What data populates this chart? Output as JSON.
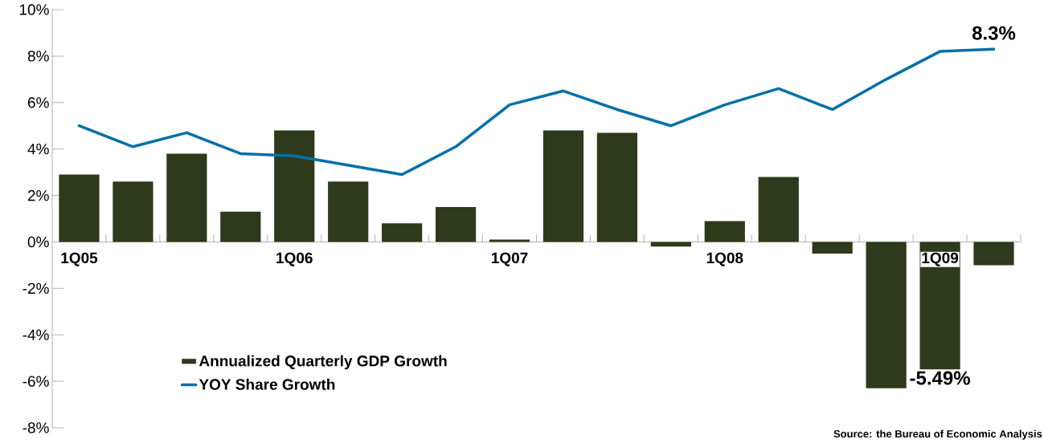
{
  "chart_data": {
    "type": "bar",
    "categories": [
      "1Q05",
      null,
      null,
      null,
      "1Q06",
      null,
      null,
      null,
      "1Q07",
      null,
      null,
      null,
      "1Q08",
      null,
      null,
      null,
      "1Q09",
      null
    ],
    "series": [
      {
        "name": "Annualized Quarterly GDP Growth",
        "type": "bar",
        "color": "#2d3a1b",
        "values": [
          2.9,
          2.6,
          3.8,
          1.3,
          4.8,
          2.6,
          0.8,
          1.5,
          0.1,
          4.8,
          4.7,
          -0.2,
          0.9,
          2.8,
          -0.5,
          -6.3,
          -5.49,
          -1.0
        ],
        "value_labels": [
          null,
          null,
          null,
          null,
          null,
          null,
          null,
          null,
          null,
          null,
          null,
          null,
          null,
          null,
          null,
          null,
          "-5.49%",
          null
        ]
      },
      {
        "name": "YOY Share Growth",
        "type": "line",
        "color": "#0070a8",
        "values": [
          5.0,
          4.1,
          4.7,
          3.8,
          3.7,
          3.3,
          2.9,
          4.1,
          5.9,
          6.5,
          5.7,
          5.0,
          5.9,
          6.6,
          5.7,
          7.0,
          8.2,
          8.3
        ],
        "value_labels": [
          null,
          null,
          null,
          null,
          null,
          null,
          null,
          null,
          null,
          null,
          null,
          null,
          null,
          null,
          null,
          null,
          null,
          "8.3%"
        ]
      }
    ],
    "ylim": [
      -8,
      10
    ],
    "yticks": [
      {
        "value": -8,
        "label": "-8%"
      },
      {
        "value": -6,
        "label": "-6%"
      },
      {
        "value": -4,
        "label": "-4%"
      },
      {
        "value": -2,
        "label": "-2%"
      },
      {
        "value": 0,
        "label": "0%"
      },
      {
        "value": 2,
        "label": "2%"
      },
      {
        "value": 4,
        "label": "4%"
      },
      {
        "value": 6,
        "label": "6%"
      },
      {
        "value": 8,
        "label": "8%"
      },
      {
        "value": 10,
        "label": "10%"
      }
    ],
    "legend": "bottom left",
    "annotations": [
      "Source: the Bureau of Economic Analysis"
    ]
  }
}
